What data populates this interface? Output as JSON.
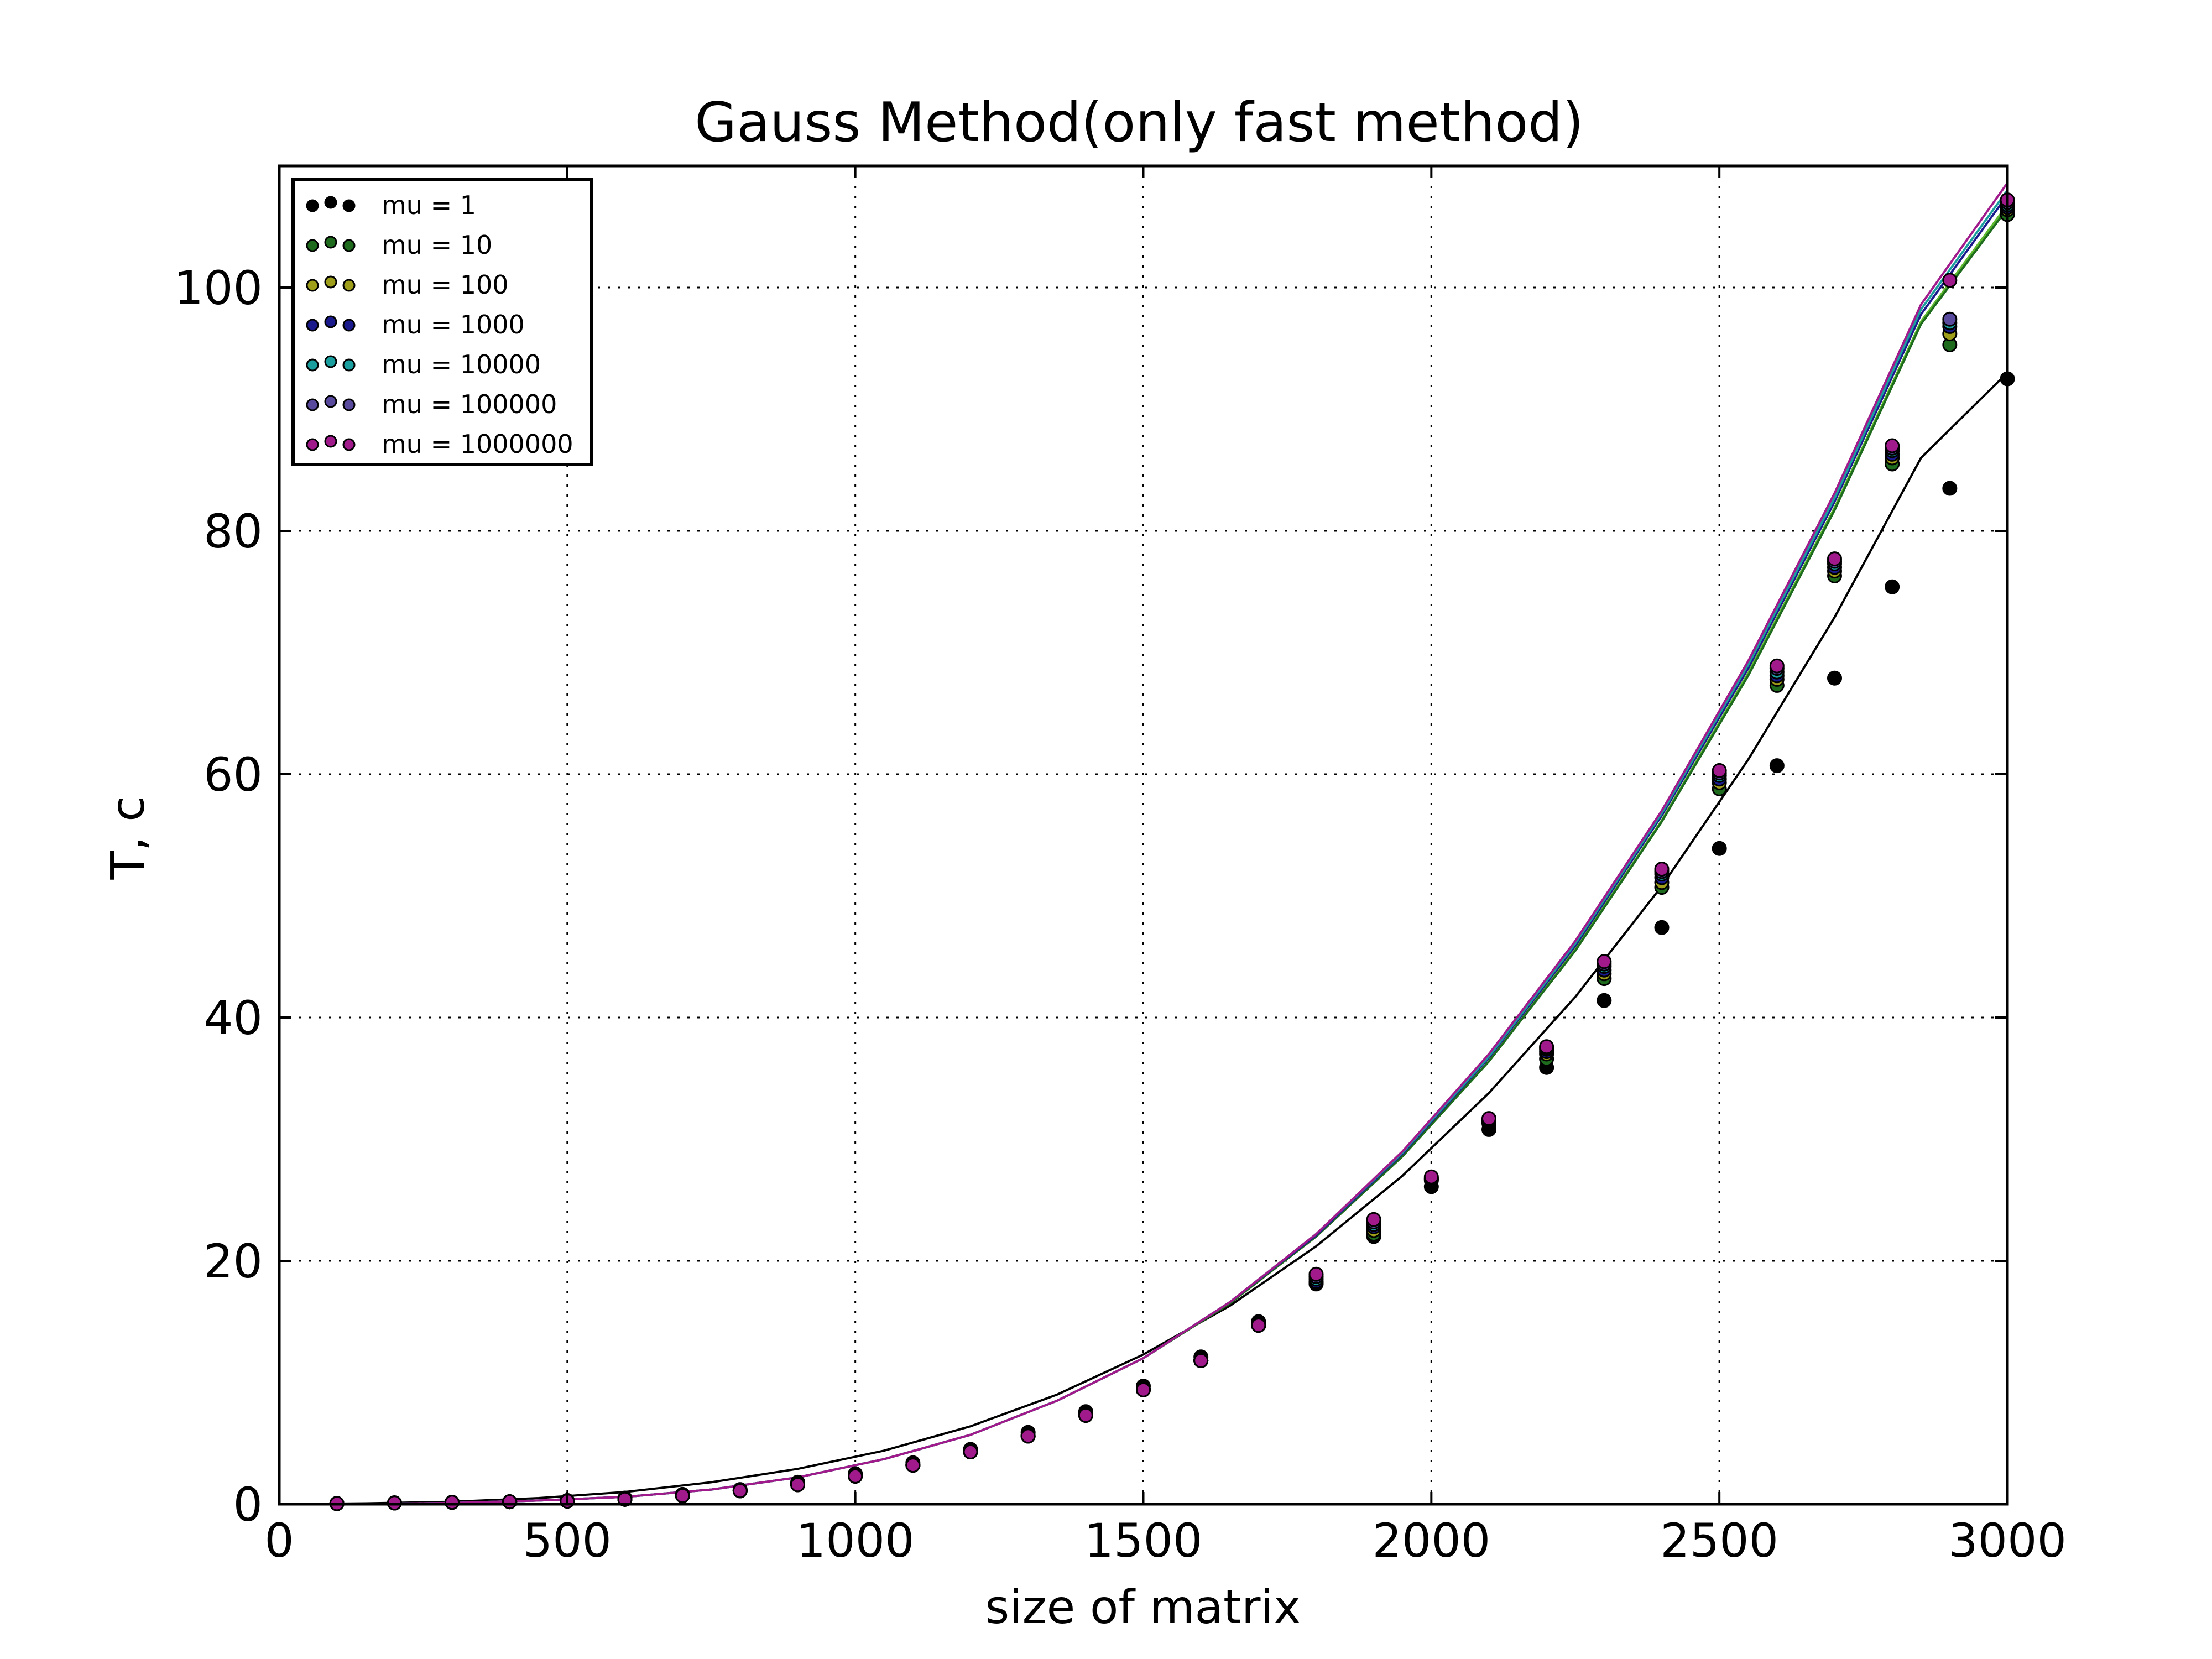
{
  "chart_data": {
    "type": "scatter",
    "title": "Gauss Method(only fast method)",
    "xlabel": "size of matrix",
    "ylabel": "T, c",
    "xlim": [
      0,
      3000
    ],
    "ylim": [
      0,
      110
    ],
    "xticks": [
      0,
      500,
      1000,
      1500,
      2000,
      2500,
      3000
    ],
    "xtick_labels": [
      "0",
      "500",
      "1000",
      "1500",
      "2000",
      "2500",
      "3000"
    ],
    "yticks": [
      0,
      20,
      40,
      60,
      80,
      100
    ],
    "ytick_labels": [
      "0",
      "20",
      "40",
      "60",
      "80",
      "100"
    ],
    "grid": true,
    "legend_position": "top-left",
    "x": [
      100,
      200,
      300,
      400,
      500,
      600,
      700,
      800,
      900,
      1000,
      1100,
      1200,
      1300,
      1400,
      1500,
      1600,
      1700,
      1800,
      1900,
      2000,
      2100,
      2200,
      2300,
      2400,
      2500,
      2600,
      2700,
      2800,
      2900,
      3000
    ],
    "series": [
      {
        "name": "mu = 1",
        "color": "#000000",
        "values": [
          0.05,
          0.1,
          0.15,
          0.2,
          0.3,
          0.5,
          0.8,
          1.2,
          1.8,
          2.5,
          3.4,
          4.5,
          5.9,
          7.6,
          9.7,
          12.1,
          15.0,
          18.2,
          22.0,
          26.1,
          30.8,
          35.9,
          41.4,
          47.4,
          53.9,
          60.7,
          67.9,
          75.4,
          83.5,
          92.5
        ]
      },
      {
        "name": "mu = 10",
        "color": "#1e6b1e",
        "values": [
          0.05,
          0.1,
          0.15,
          0.2,
          0.25,
          0.4,
          0.7,
          1.1,
          1.6,
          2.3,
          3.2,
          4.3,
          5.6,
          7.3,
          9.4,
          11.8,
          14.7,
          18.1,
          22.2,
          26.6,
          31.3,
          36.6,
          43.2,
          50.7,
          58.8,
          67.3,
          76.3,
          85.5,
          95.3,
          106.0
        ]
      },
      {
        "name": "mu = 100",
        "color": "#9e9e1a",
        "values": [
          0.05,
          0.1,
          0.15,
          0.2,
          0.25,
          0.4,
          0.7,
          1.1,
          1.6,
          2.3,
          3.2,
          4.3,
          5.6,
          7.3,
          9.4,
          11.8,
          14.7,
          18.2,
          22.5,
          26.7,
          31.4,
          37.0,
          43.6,
          51.1,
          59.3,
          67.8,
          76.7,
          86.0,
          96.2,
          106.4
        ]
      },
      {
        "name": "mu = 1000",
        "color": "#1a1a8c",
        "values": [
          0.05,
          0.1,
          0.15,
          0.2,
          0.25,
          0.4,
          0.7,
          1.1,
          1.6,
          2.3,
          3.2,
          4.3,
          5.6,
          7.3,
          9.4,
          11.8,
          14.7,
          18.3,
          22.8,
          26.7,
          31.5,
          37.2,
          43.9,
          51.5,
          59.6,
          68.1,
          77.0,
          86.3,
          96.8,
          106.6
        ]
      },
      {
        "name": "mu = 10000",
        "color": "#1a9e9e",
        "values": [
          0.05,
          0.1,
          0.15,
          0.2,
          0.25,
          0.4,
          0.7,
          1.1,
          1.6,
          2.3,
          3.2,
          4.3,
          5.6,
          7.3,
          9.4,
          11.8,
          14.7,
          18.5,
          23.0,
          26.8,
          31.6,
          37.4,
          44.2,
          51.8,
          59.9,
          68.4,
          77.3,
          86.6,
          97.1,
          106.8
        ]
      },
      {
        "name": "mu = 100000",
        "color": "#5a4a9e",
        "values": [
          0.05,
          0.1,
          0.15,
          0.2,
          0.25,
          0.4,
          0.7,
          1.1,
          1.6,
          2.3,
          3.2,
          4.3,
          5.6,
          7.3,
          9.4,
          11.8,
          14.7,
          18.7,
          23.2,
          26.8,
          31.6,
          37.5,
          44.4,
          52.0,
          60.1,
          68.7,
          77.5,
          86.8,
          97.4,
          107.0
        ]
      },
      {
        "name": "mu = 1000000",
        "color": "#a01a8c",
        "values": [
          0.05,
          0.1,
          0.15,
          0.2,
          0.25,
          0.4,
          0.7,
          1.1,
          1.6,
          2.3,
          3.2,
          4.3,
          5.6,
          7.3,
          9.4,
          11.8,
          14.7,
          18.9,
          23.4,
          26.9,
          31.7,
          37.6,
          44.6,
          52.2,
          60.3,
          68.9,
          77.7,
          87.0,
          100.6,
          107.2
        ]
      }
    ],
    "fit_curves": [
      {
        "color": "#000000",
        "values": [
          0.0,
          0.07,
          0.2,
          0.5,
          1.0,
          1.8,
          2.9,
          4.4,
          6.4,
          9.0,
          12.3,
          16.3,
          21.2,
          27.0,
          33.8,
          41.7,
          50.8,
          61.2,
          72.9,
          86.0,
          93.0
        ]
      },
      {
        "color": "#5cb82c",
        "values": [
          0.0,
          0.02,
          0.1,
          0.3,
          0.6,
          1.2,
          2.2,
          3.7,
          5.7,
          8.5,
          12.0,
          16.5,
          22.0,
          28.6,
          36.4,
          45.6,
          56.2,
          68.3,
          81.9,
          97.2,
          106.8
        ]
      },
      {
        "color": "#1e6b1e",
        "values": [
          0.0,
          0.02,
          0.1,
          0.3,
          0.6,
          1.2,
          2.2,
          3.7,
          5.7,
          8.5,
          12.0,
          16.5,
          22.0,
          28.6,
          36.4,
          45.5,
          56.1,
          68.1,
          81.7,
          97.0,
          106.5
        ]
      },
      {
        "color": "#1a1a8c",
        "values": [
          0.0,
          0.02,
          0.1,
          0.3,
          0.6,
          1.2,
          2.2,
          3.7,
          5.7,
          8.5,
          12.0,
          16.6,
          22.1,
          28.8,
          36.7,
          45.9,
          56.6,
          68.7,
          82.4,
          97.8,
          107.6
        ]
      },
      {
        "color": "#1a9e9e",
        "values": [
          0.0,
          0.02,
          0.1,
          0.3,
          0.6,
          1.2,
          2.2,
          3.7,
          5.7,
          8.5,
          12.0,
          16.6,
          22.2,
          28.9,
          36.8,
          46.1,
          56.8,
          69.0,
          82.7,
          98.2,
          108.0
        ]
      },
      {
        "color": "#a01a8c",
        "values": [
          0.0,
          0.02,
          0.1,
          0.3,
          0.6,
          1.2,
          2.2,
          3.7,
          5.7,
          8.5,
          12.0,
          16.6,
          22.2,
          29.0,
          37.0,
          46.3,
          57.0,
          69.3,
          83.1,
          98.6,
          108.6
        ]
      }
    ],
    "fit_x": [
      0,
      150,
      300,
      450,
      600,
      750,
      900,
      1050,
      1200,
      1350,
      1500,
      1650,
      1800,
      1950,
      2100,
      2250,
      2400,
      2550,
      2700,
      2850,
      3000
    ]
  }
}
